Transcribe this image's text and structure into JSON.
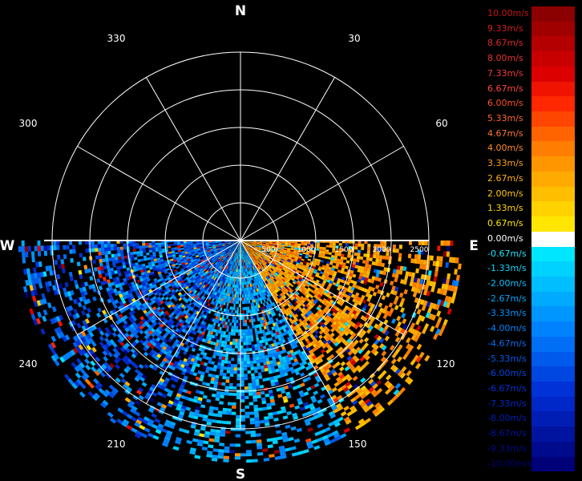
{
  "chart_data": {
    "type": "polar",
    "title": "",
    "compass": {
      "N": "N",
      "E": "E",
      "S": "S",
      "W": "W"
    },
    "azimuth_labels": [
      "30",
      "60",
      "120",
      "150",
      "210",
      "240",
      "300",
      "330"
    ],
    "range_ticks": [
      "500",
      "1000",
      "1500",
      "2000",
      "2500"
    ],
    "range_max": 2500,
    "scan_sector_deg": [
      90,
      270
    ],
    "grid": true,
    "legend_position": "right",
    "legend": [
      {
        "label": "10.00m/s",
        "color": "#8b0000",
        "text_color": "#c81414"
      },
      {
        "label": "9.33m/s",
        "color": "#a00000",
        "text_color": "#d21e1e"
      },
      {
        "label": "8.67m/s",
        "color": "#b40000",
        "text_color": "#dc2828"
      },
      {
        "label": "8.00m/s",
        "color": "#c80000",
        "text_color": "#e63232"
      },
      {
        "label": "7.33m/s",
        "color": "#dc0000",
        "text_color": "#f03c3c"
      },
      {
        "label": "6.67m/s",
        "color": "#f01400",
        "text_color": "#ff4646"
      },
      {
        "label": "6.00m/s",
        "color": "#ff2800",
        "text_color": "#ff5028"
      },
      {
        "label": "5.33m/s",
        "color": "#ff4600",
        "text_color": "#ff6432"
      },
      {
        "label": "4.67m/s",
        "color": "#ff6400",
        "text_color": "#ff7832"
      },
      {
        "label": "4.00m/s",
        "color": "#ff7d00",
        "text_color": "#ff8c28"
      },
      {
        "label": "3.33m/s",
        "color": "#ff9600",
        "text_color": "#ffa01e"
      },
      {
        "label": "2.67m/s",
        "color": "#ffaa00",
        "text_color": "#ffb414"
      },
      {
        "label": "2.00m/s",
        "color": "#ffbe00",
        "text_color": "#ffc80a"
      },
      {
        "label": "1.33m/s",
        "color": "#ffd200",
        "text_color": "#ffd700"
      },
      {
        "label": "0.67m/s",
        "color": "#ffe600",
        "text_color": "#ffe600"
      },
      {
        "label": "0.00m/s",
        "color": "#ffffff",
        "text_color": "#ffffff"
      },
      {
        "label": "-0.67m/s",
        "color": "#00e6ff",
        "text_color": "#1ee6ff"
      },
      {
        "label": "-1.33m/s",
        "color": "#00d2ff",
        "text_color": "#14d2ff"
      },
      {
        "label": "-2.00m/s",
        "color": "#00beff",
        "text_color": "#0abeff"
      },
      {
        "label": "-2.67m/s",
        "color": "#00aaff",
        "text_color": "#00aaff"
      },
      {
        "label": "-3.33m/s",
        "color": "#0096ff",
        "text_color": "#0096ff"
      },
      {
        "label": "-4.00m/s",
        "color": "#0082ff",
        "text_color": "#0082ff"
      },
      {
        "label": "-4.67m/s",
        "color": "#006ef5",
        "text_color": "#006ef5"
      },
      {
        "label": "-5.33m/s",
        "color": "#005aeb",
        "text_color": "#005aeb"
      },
      {
        "label": "-6.00m/s",
        "color": "#0046e1",
        "text_color": "#0046e1"
      },
      {
        "label": "-6.67m/s",
        "color": "#0032d7",
        "text_color": "#0032d7"
      },
      {
        "label": "-7.33m/s",
        "color": "#0028c8",
        "text_color": "#0028c8"
      },
      {
        "label": "-8.00m/s",
        "color": "#001eb4",
        "text_color": "#001eb4"
      },
      {
        "label": "-8.67m/s",
        "color": "#0014a0",
        "text_color": "#0014a0"
      },
      {
        "label": "-9.33m/s",
        "color": "#000a8c",
        "text_color": "#000a8c"
      },
      {
        "label": "-10.00m/s",
        "color": "#000078",
        "text_color": "#000078"
      }
    ]
  }
}
